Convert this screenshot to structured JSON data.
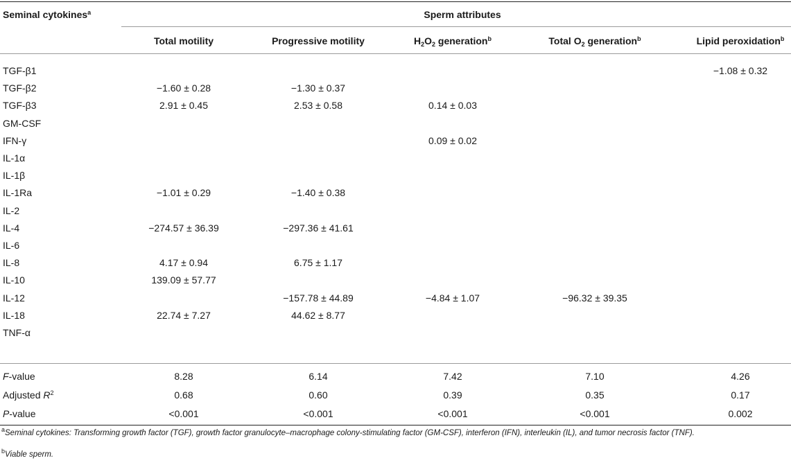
{
  "header": {
    "row_col": "Seminal cytokines",
    "row_col_sup": "a",
    "group": "Sperm attributes",
    "columns": [
      {
        "label": "Total motility",
        "sup": ""
      },
      {
        "label": "Progressive motility",
        "sup": ""
      },
      {
        "label_pre": "H",
        "sub1": "2",
        "label_mid": "O",
        "sub2": "2",
        "label_post": " generation",
        "sup": "b"
      },
      {
        "label_pre": "Total O",
        "sub1": "2",
        "label_post": " generation",
        "sup": "b"
      },
      {
        "label": "Lipid peroxidation",
        "sup": "b"
      }
    ]
  },
  "rows": [
    {
      "label": "TGF-β1",
      "values": [
        "",
        "",
        "",
        "",
        "−1.08 ± 0.32"
      ]
    },
    {
      "label": "TGF-β2",
      "values": [
        "−1.60 ± 0.28",
        "−1.30 ± 0.37",
        "",
        "",
        ""
      ]
    },
    {
      "label": "TGF-β3",
      "values": [
        "2.91 ± 0.45",
        "2.53 ± 0.58",
        "0.14 ± 0.03",
        "",
        ""
      ]
    },
    {
      "label": "GM-CSF",
      "values": [
        "",
        "",
        "",
        "",
        ""
      ]
    },
    {
      "label": "IFN-γ",
      "values": [
        "",
        "",
        "0.09 ± 0.02",
        "",
        ""
      ]
    },
    {
      "label": "IL-1α",
      "values": [
        "",
        "",
        "",
        "",
        ""
      ]
    },
    {
      "label": "IL-1β",
      "values": [
        "",
        "",
        "",
        "",
        ""
      ]
    },
    {
      "label": "IL-1Ra",
      "values": [
        "−1.01 ± 0.29",
        "−1.40 ± 0.38",
        "",
        "",
        ""
      ]
    },
    {
      "label": "IL-2",
      "values": [
        "",
        "",
        "",
        "",
        ""
      ]
    },
    {
      "label": "IL-4",
      "values": [
        "−274.57 ± 36.39",
        "−297.36 ± 41.61",
        "",
        "",
        ""
      ]
    },
    {
      "label": "IL-6",
      "values": [
        "",
        "",
        "",
        "",
        ""
      ]
    },
    {
      "label": "IL-8",
      "values": [
        "4.17 ± 0.94",
        "6.75 ± 1.17",
        "",
        "",
        ""
      ]
    },
    {
      "label": "IL-10",
      "values": [
        "139.09 ± 57.77",
        "",
        "",
        "",
        ""
      ]
    },
    {
      "label": "IL-12",
      "values": [
        "",
        "−157.78 ± 44.89",
        "−4.84 ± 1.07",
        "−96.32 ± 39.35",
        ""
      ]
    },
    {
      "label": "IL-18",
      "values": [
        "22.74 ± 7.27",
        "44.62 ± 8.77",
        "",
        "",
        ""
      ]
    },
    {
      "label": "TNF-α",
      "values": [
        "",
        "",
        "",
        "",
        ""
      ]
    }
  ],
  "stats": [
    {
      "label_it": "F",
      "label_rest": "-value",
      "values": [
        "8.28",
        "6.14",
        "7.42",
        "7.10",
        "4.26"
      ]
    },
    {
      "label_pre": "Adjusted ",
      "label_it": "R",
      "label_sup": "2",
      "values": [
        "0.68",
        "0.60",
        "0.39",
        "0.35",
        "0.17"
      ]
    },
    {
      "label_it": "P",
      "label_rest": "-value",
      "values": [
        "<0.001",
        "<0.001",
        "<0.001",
        "<0.001",
        "0.002"
      ]
    }
  ],
  "footnotes": [
    {
      "mark": "a",
      "text": "Seminal cytokines: Transforming growth factor (TGF), growth factor granulocyte–macrophage colony-stimulating factor (GM-CSF), interferon (IFN), interleukin (IL), and tumor necrosis factor (TNF)."
    },
    {
      "mark": "b",
      "text": "Viable sperm."
    }
  ]
}
